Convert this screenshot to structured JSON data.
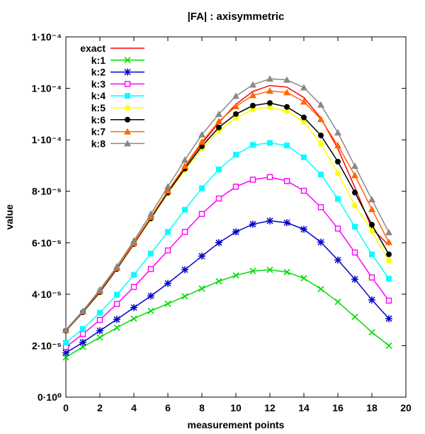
{
  "chart_data": {
    "type": "line",
    "title": "|FA| : axisymmetric",
    "xlabel": "measurement points",
    "ylabel": "value",
    "xlim": [
      0,
      20
    ],
    "ylim": [
      0,
      0.00014
    ],
    "x_ticks": [
      0,
      2,
      4,
      6,
      8,
      10,
      12,
      14,
      16,
      18,
      20
    ],
    "y_ticks": [
      {
        "value": 0,
        "label": "0·10⁰"
      },
      {
        "value": 2e-05,
        "label": "2·10⁻⁵"
      },
      {
        "value": 4e-05,
        "label": "4·10⁻⁵"
      },
      {
        "value": 6e-05,
        "label": "6·10⁻⁵"
      },
      {
        "value": 8e-05,
        "label": "8·10⁻⁵"
      },
      {
        "value": 0.0001,
        "label": "1·10⁻⁴"
      },
      {
        "value": 0.00012,
        "label": "1·10⁻⁴"
      },
      {
        "value": 0.00014,
        "label": "1·10⁻⁴"
      }
    ],
    "legend_position": "top-left",
    "x": [
      0,
      1,
      2,
      3,
      4,
      5,
      6,
      7,
      8,
      9,
      10,
      11,
      12,
      13,
      14,
      15,
      16,
      17,
      18,
      19
    ],
    "series": [
      {
        "name": "exact",
        "color": "#ff0000",
        "marker": "none",
        "values": [
          2.6e-05,
          3.35e-05,
          4.15e-05,
          5.05e-05,
          6e-05,
          7e-05,
          8e-05,
          8.95e-05,
          9.85e-05,
          0.0001067,
          0.0001138,
          0.0001188,
          0.0001211,
          0.0001205,
          0.0001164,
          0.0001084,
          9.65e-05,
          8.15e-05,
          6.55e-05,
          5.9e-05
        ]
      },
      {
        "name": "k:1",
        "color": "#00dd00",
        "marker": "x",
        "values": [
          1.55e-05,
          1.95e-05,
          2.32e-05,
          2.7e-05,
          3.05e-05,
          3.35e-05,
          3.63e-05,
          3.92e-05,
          4.22e-05,
          4.5e-05,
          4.73e-05,
          4.9e-05,
          4.95e-05,
          4.86e-05,
          4.62e-05,
          4.2e-05,
          3.7e-05,
          3.12e-05,
          2.52e-05,
          2e-05
        ]
      },
      {
        "name": "k:2",
        "color": "#0000cc",
        "marker": "star",
        "values": [
          1.72e-05,
          2.13e-05,
          2.58e-05,
          3.02e-05,
          3.48e-05,
          3.93e-05,
          4.42e-05,
          4.95e-05,
          5.48e-05,
          6e-05,
          6.42e-05,
          6.72e-05,
          6.85e-05,
          6.78e-05,
          6.52e-05,
          6.02e-05,
          5.33e-05,
          4.58e-05,
          3.78e-05,
          3.05e-05
        ]
      },
      {
        "name": "k:3",
        "color": "#ff00ff",
        "marker": "open-square",
        "values": [
          1.95e-05,
          2.45e-05,
          3e-05,
          3.62e-05,
          4.28e-05,
          4.98e-05,
          5.7e-05,
          6.42e-05,
          7.12e-05,
          7.72e-05,
          8.18e-05,
          8.45e-05,
          8.55e-05,
          8.4e-05,
          8.02e-05,
          7.38e-05,
          6.55e-05,
          5.62e-05,
          4.65e-05,
          3.75e-05
        ]
      },
      {
        "name": "k:4",
        "color": "#00ffff",
        "marker": "filled-square",
        "values": [
          2.12e-05,
          2.65e-05,
          3.28e-05,
          3.98e-05,
          4.75e-05,
          5.58e-05,
          6.42e-05,
          7.28e-05,
          8.12e-05,
          8.85e-05,
          9.42e-05,
          9.8e-05,
          9.88e-05,
          9.78e-05,
          9.32e-05,
          8.65e-05,
          7.7e-05,
          6.62e-05,
          5.55e-05,
          4.6e-05
        ]
      },
      {
        "name": "k:5",
        "color": "#ffff00",
        "marker": "filled-circle",
        "values": [
          2.58e-05,
          3.3e-05,
          4.08e-05,
          4.98e-05,
          5.95e-05,
          6.92e-05,
          7.92e-05,
          8.82e-05,
          9.65e-05,
          0.0001035,
          0.0001085,
          0.0001118,
          0.0001127,
          0.0001112,
          0.000107,
          9.85e-05,
          8.7e-05,
          7.45e-05,
          6.45e-05,
          5.3e-05
        ]
      },
      {
        "name": "k:6",
        "color": "#000000",
        "marker": "filled-circle",
        "values": [
          2.58e-05,
          3.3e-05,
          4.08e-05,
          4.98e-05,
          5.95e-05,
          6.95e-05,
          7.95e-05,
          8.88e-05,
          9.75e-05,
          0.0001048,
          0.00011,
          0.0001133,
          0.0001143,
          0.0001128,
          0.0001087,
          0.0001017,
          9.15e-05,
          7.95e-05,
          6.7e-05,
          5.55e-05
        ]
      },
      {
        "name": "k:7",
        "color": "#ff6600",
        "marker": "filled-triangle",
        "values": [
          2.6e-05,
          3.33e-05,
          4.12e-05,
          5.02e-05,
          5.98e-05,
          7e-05,
          8.02e-05,
          8.98e-05,
          9.92e-05,
          0.0001072,
          0.000113,
          0.0001173,
          0.000119,
          0.0001184,
          0.0001148,
          0.000108,
          9.78e-05,
          8.62e-05,
          7.3e-05,
          6.02e-05
        ]
      },
      {
        "name": "k:8",
        "color": "#888888",
        "marker": "filled-triangle",
        "values": [
          2.62e-05,
          3.35e-05,
          4.18e-05,
          5.08e-05,
          6.08e-05,
          7.12e-05,
          8.18e-05,
          9.22e-05,
          0.000102,
          0.00011,
          0.000117,
          0.0001214,
          0.0001237,
          0.0001233,
          0.0001203,
          0.0001136,
          0.0001028,
          8.98e-05,
          7.68e-05,
          6.4e-05
        ]
      }
    ]
  }
}
